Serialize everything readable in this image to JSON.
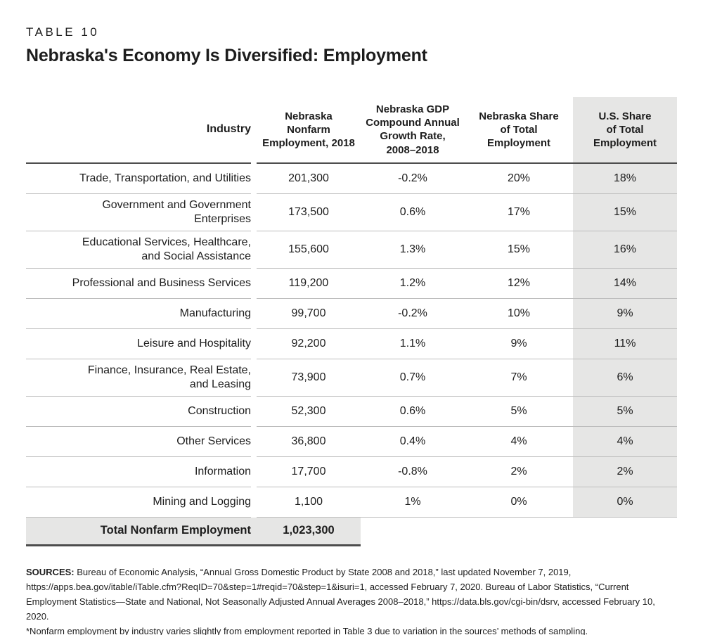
{
  "page": {
    "table_label": "TABLE 10",
    "title": "Nebraska's Economy Is Diversified: Employment"
  },
  "table": {
    "headers": {
      "industry": "Industry",
      "employment": "Nebraska\nNonfarm\nEmployment, 2018",
      "growth": "Nebraska GDP\nCompound Annual\nGrowth Rate,\n2008–2018",
      "ne_share": "Nebraska Share\nof Total\nEmployment",
      "us_share": "U.S. Share\nof Total\nEmployment"
    },
    "rows": [
      {
        "industry": "Trade, Transportation, and Utilities",
        "employment": "201,300",
        "growth": "-0.2%",
        "ne_share": "20%",
        "us_share": "18%"
      },
      {
        "industry": "Government and Government\nEnterprises",
        "employment": "173,500",
        "growth": "0.6%",
        "ne_share": "17%",
        "us_share": "15%"
      },
      {
        "industry": "Educational Services, Healthcare,\nand Social Assistance",
        "employment": "155,600",
        "growth": "1.3%",
        "ne_share": "15%",
        "us_share": "16%"
      },
      {
        "industry": "Professional and Business Services",
        "employment": "119,200",
        "growth": "1.2%",
        "ne_share": "12%",
        "us_share": "14%"
      },
      {
        "industry": "Manufacturing",
        "employment": "99,700",
        "growth": "-0.2%",
        "ne_share": "10%",
        "us_share": "9%"
      },
      {
        "industry": "Leisure and Hospitality",
        "employment": "92,200",
        "growth": "1.1%",
        "ne_share": "9%",
        "us_share": "11%"
      },
      {
        "industry": "Finance, Insurance, Real Estate,\nand Leasing",
        "employment": "73,900",
        "growth": "0.7%",
        "ne_share": "7%",
        "us_share": "6%"
      },
      {
        "industry": "Construction",
        "employment": "52,300",
        "growth": "0.6%",
        "ne_share": "5%",
        "us_share": "5%"
      },
      {
        "industry": "Other Services",
        "employment": "36,800",
        "growth": "0.4%",
        "ne_share": "4%",
        "us_share": "4%"
      },
      {
        "industry": "Information",
        "employment": "17,700",
        "growth": "-0.8%",
        "ne_share": "2%",
        "us_share": "2%"
      },
      {
        "industry": "Mining and Logging",
        "employment": "1,100",
        "growth": "1%",
        "ne_share": "0%",
        "us_share": "0%"
      }
    ],
    "total": {
      "label": "Total Nonfarm Employment",
      "value": "1,023,300"
    }
  },
  "footer": {
    "sources_label": "SOURCES:",
    "sources_text": "Bureau of Economic Analysis, “Annual Gross Domestic Product by State 2008 and 2018,” last updated November 7, 2019, https://apps.bea.gov/itable/iTable.cfm?ReqID=70&step=1#reqid=70&step=1&isuri=1, accessed February 7, 2020. Bureau of Labor Statistics, “Current Employment Statistics—State and National, Not Seasonally Adjusted Annual Averages 2008–2018,” https://data.bls.gov/cgi-bin/dsrv, accessed February 10, 2020.",
    "footnote": "*Nonfarm employment by industry varies slightly from employment reported in Table 3 due to variation in the sources’ methods of sampling."
  },
  "colors": {
    "highlight_gray": "#e6e6e5",
    "rule_dark": "#4d4d4d",
    "rule_light": "#bdbdbd",
    "text": "#1d1d1d"
  }
}
